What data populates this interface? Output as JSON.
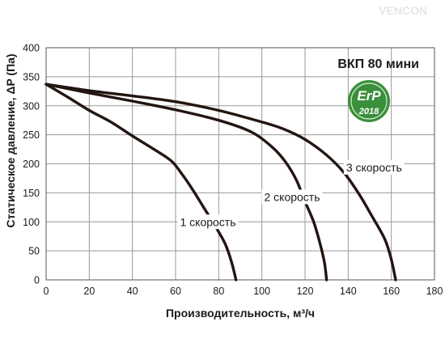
{
  "chart_data": {
    "type": "line",
    "title": "ВКП 80 мини",
    "xlabel": "Производительность, м³/ч",
    "ylabel": "Статическое давление, ΔP (Па)",
    "xlim": [
      0,
      180
    ],
    "ylim": [
      0,
      400
    ],
    "xticks": [
      0,
      20,
      40,
      60,
      80,
      100,
      120,
      140,
      160,
      180
    ],
    "yticks": [
      0,
      50,
      100,
      150,
      200,
      250,
      300,
      350,
      400
    ],
    "xtick_labels": [
      "0",
      "20",
      "40",
      "60",
      "80",
      "100",
      "120",
      "140",
      "160",
      "180"
    ],
    "ytick_labels": [
      "0",
      "50",
      "100",
      "150",
      "200",
      "250",
      "300",
      "350",
      "400"
    ],
    "grid": true,
    "line_color": "#231510",
    "grid_color": "#9a9a9a",
    "series": [
      {
        "name": "1 скорость",
        "x": [
          0,
          10,
          20,
          30,
          40,
          50,
          58,
          63,
          68,
          73,
          78,
          83,
          86,
          88
        ],
        "y": [
          337,
          315,
          292,
          272,
          248,
          225,
          205,
          182,
          155,
          125,
          95,
          62,
          30,
          0
        ]
      },
      {
        "name": "2 скорость",
        "x": [
          0,
          20,
          40,
          60,
          80,
          95,
          105,
          111,
          116,
          120,
          124,
          127,
          129,
          130
        ],
        "y": [
          337,
          322,
          308,
          293,
          275,
          255,
          228,
          203,
          172,
          135,
          100,
          62,
          30,
          0
        ]
      },
      {
        "name": "3 скорость",
        "x": [
          0,
          20,
          40,
          60,
          80,
          100,
          110,
          120,
          130,
          138,
          145,
          151,
          157,
          160,
          162
        ],
        "y": [
          337,
          326,
          317,
          307,
          292,
          272,
          260,
          242,
          215,
          185,
          148,
          110,
          70,
          35,
          0
        ]
      }
    ],
    "annotations": [
      {
        "text": "1 скорость",
        "x": 75,
        "y": 93
      },
      {
        "text": "2 скорость",
        "x": 114,
        "y": 136
      },
      {
        "text": "3 скорость",
        "x": 152,
        "y": 187
      }
    ]
  },
  "badge": {
    "text": "ErP",
    "year": "2018",
    "color": "#3a8f3a"
  },
  "watermark": "VENCON"
}
